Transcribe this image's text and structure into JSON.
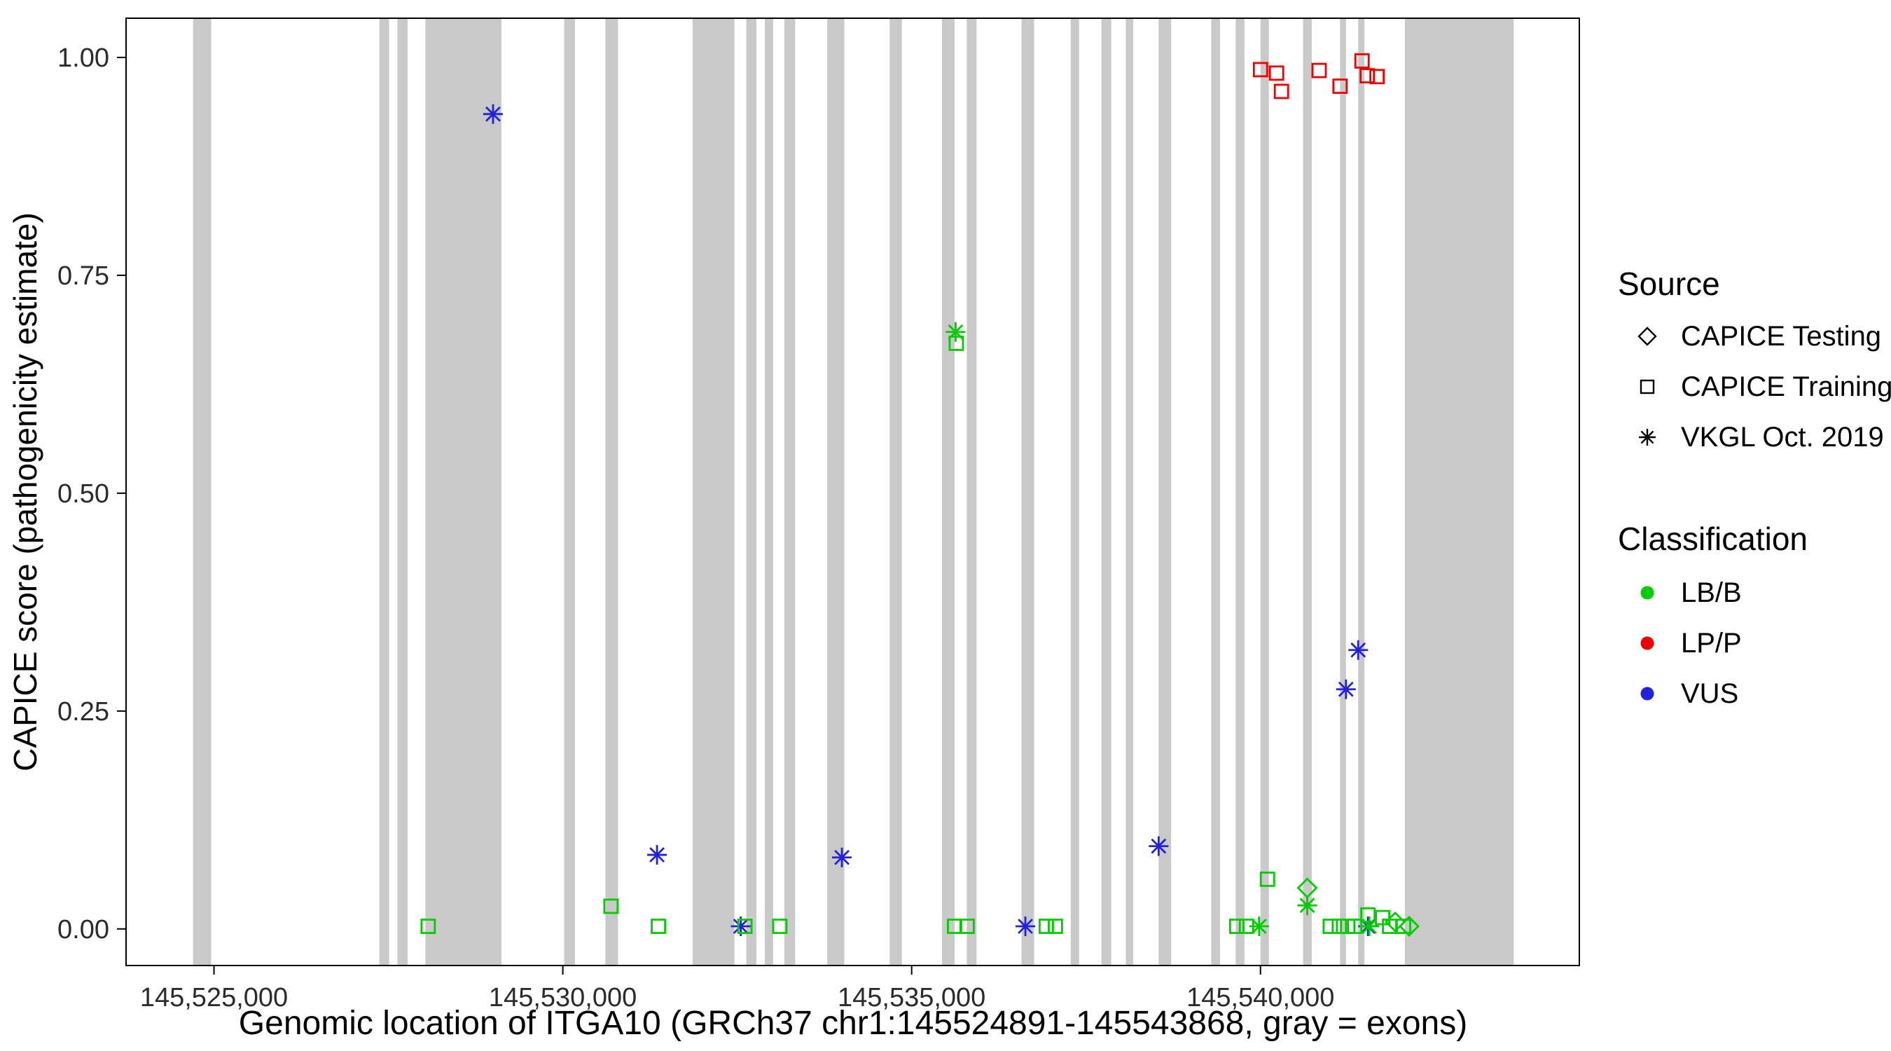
{
  "chart_data": {
    "type": "scatter",
    "title": "",
    "xlabel": "Genomic location of ITGA10 (GRCh37 chr1:145524891-145543868, gray = exons)",
    "ylabel": "CAPICE score (pathogenicity estimate)",
    "xlim": [
      145523740,
      145544570
    ],
    "ylim": [
      -0.042,
      1.045
    ],
    "x_ticks": [
      {
        "value": 145525000,
        "label": "145,525,000"
      },
      {
        "value": 145530000,
        "label": "145,530,000"
      },
      {
        "value": 145535000,
        "label": "145,535,000"
      },
      {
        "value": 145540000,
        "label": "145,540,000"
      }
    ],
    "y_ticks": [
      {
        "value": 0.0,
        "label": "0.00"
      },
      {
        "value": 0.25,
        "label": "0.25"
      },
      {
        "value": 0.5,
        "label": "0.50"
      },
      {
        "value": 0.75,
        "label": "0.75"
      },
      {
        "value": 1.0,
        "label": "1.00"
      }
    ],
    "grid": false,
    "exon_fill": "#c9c9c9",
    "colors": {
      "LB/B": "#00cc00",
      "LP/P": "#ee0000",
      "VUS": "#2222dd"
    },
    "shapes": {
      "testing": "diamond",
      "training": "square",
      "vkgl": "asterisk"
    },
    "exons": [
      [
        145524700,
        145524960
      ],
      [
        145527370,
        145527510
      ],
      [
        145527630,
        145527775
      ],
      [
        145528030,
        145529120
      ],
      [
        145530020,
        145530175
      ],
      [
        145530610,
        145530790
      ],
      [
        145531860,
        145532460
      ],
      [
        145532630,
        145532775
      ],
      [
        145532895,
        145533015
      ],
      [
        145533175,
        145533330
      ],
      [
        145533790,
        145534035
      ],
      [
        145534685,
        145534860
      ],
      [
        145535435,
        145535615
      ],
      [
        145535790,
        145535930
      ],
      [
        145536575,
        145536755
      ],
      [
        145537280,
        145537400
      ],
      [
        145537720,
        145537860
      ],
      [
        145538070,
        145538175
      ],
      [
        145538540,
        145538720
      ],
      [
        145539295,
        145539420
      ],
      [
        145539645,
        145539770
      ],
      [
        145540000,
        145540120
      ],
      [
        145540610,
        145540735
      ],
      [
        145541140,
        145541225
      ],
      [
        145541400,
        145541490
      ],
      [
        145542070,
        145543630
      ]
    ],
    "points": [
      {
        "x": 145529000,
        "y": 0.935,
        "source": "vkgl",
        "cls": "VUS"
      },
      {
        "x": 145531350,
        "y": 0.085,
        "source": "vkgl",
        "cls": "VUS"
      },
      {
        "x": 145532550,
        "y": 0.003,
        "source": "vkgl",
        "cls": "VUS"
      },
      {
        "x": 145534000,
        "y": 0.082,
        "source": "vkgl",
        "cls": "VUS"
      },
      {
        "x": 145536630,
        "y": 0.003,
        "source": "vkgl",
        "cls": "VUS"
      },
      {
        "x": 145538540,
        "y": 0.095,
        "source": "vkgl",
        "cls": "VUS"
      },
      {
        "x": 145541225,
        "y": 0.275,
        "source": "vkgl",
        "cls": "VUS"
      },
      {
        "x": 145541400,
        "y": 0.32,
        "source": "vkgl",
        "cls": "VUS"
      },
      {
        "x": 145541540,
        "y": 0.003,
        "source": "vkgl",
        "cls": "VUS"
      },
      {
        "x": 145540000,
        "y": 0.986,
        "source": "training",
        "cls": "LP/P"
      },
      {
        "x": 145540230,
        "y": 0.982,
        "source": "training",
        "cls": "LP/P"
      },
      {
        "x": 145540300,
        "y": 0.961,
        "source": "training",
        "cls": "LP/P"
      },
      {
        "x": 145540840,
        "y": 0.985,
        "source": "training",
        "cls": "LP/P"
      },
      {
        "x": 145541140,
        "y": 0.967,
        "source": "training",
        "cls": "LP/P"
      },
      {
        "x": 145541455,
        "y": 0.996,
        "source": "training",
        "cls": "LP/P"
      },
      {
        "x": 145541530,
        "y": 0.979,
        "source": "training",
        "cls": "LP/P"
      },
      {
        "x": 145541670,
        "y": 0.978,
        "source": "training",
        "cls": "LP/P"
      },
      {
        "x": 145535630,
        "y": 0.685,
        "source": "vkgl",
        "cls": "LB/B"
      },
      {
        "x": 145535640,
        "y": 0.672,
        "source": "training",
        "cls": "LB/B"
      },
      {
        "x": 145539980,
        "y": 0.003,
        "source": "vkgl",
        "cls": "LB/B"
      },
      {
        "x": 145540670,
        "y": 0.027,
        "source": "vkgl",
        "cls": "LB/B"
      },
      {
        "x": 145541560,
        "y": 0.003,
        "source": "vkgl",
        "cls": "LB/B"
      },
      {
        "x": 145528070,
        "y": 0.003,
        "source": "training",
        "cls": "LB/B"
      },
      {
        "x": 145530690,
        "y": 0.026,
        "source": "training",
        "cls": "LB/B"
      },
      {
        "x": 145531370,
        "y": 0.003,
        "source": "training",
        "cls": "LB/B"
      },
      {
        "x": 145532610,
        "y": 0.003,
        "source": "training",
        "cls": "LB/B"
      },
      {
        "x": 145533110,
        "y": 0.003,
        "source": "training",
        "cls": "LB/B"
      },
      {
        "x": 145535615,
        "y": 0.003,
        "source": "training",
        "cls": "LB/B"
      },
      {
        "x": 145535795,
        "y": 0.003,
        "source": "training",
        "cls": "LB/B"
      },
      {
        "x": 145536930,
        "y": 0.003,
        "source": "training",
        "cls": "LB/B"
      },
      {
        "x": 145537060,
        "y": 0.003,
        "source": "training",
        "cls": "LB/B"
      },
      {
        "x": 145539660,
        "y": 0.003,
        "source": "training",
        "cls": "LB/B"
      },
      {
        "x": 145539800,
        "y": 0.003,
        "source": "training",
        "cls": "LB/B"
      },
      {
        "x": 145540100,
        "y": 0.057,
        "source": "training",
        "cls": "LB/B"
      },
      {
        "x": 145541000,
        "y": 0.003,
        "source": "training",
        "cls": "LB/B"
      },
      {
        "x": 145541130,
        "y": 0.003,
        "source": "training",
        "cls": "LB/B"
      },
      {
        "x": 145541250,
        "y": 0.003,
        "source": "training",
        "cls": "LB/B"
      },
      {
        "x": 145541350,
        "y": 0.003,
        "source": "training",
        "cls": "LB/B"
      },
      {
        "x": 145541540,
        "y": 0.016,
        "source": "training",
        "cls": "LB/B"
      },
      {
        "x": 145541750,
        "y": 0.013,
        "source": "training",
        "cls": "LB/B"
      },
      {
        "x": 145541850,
        "y": 0.003,
        "source": "training",
        "cls": "LB/B"
      },
      {
        "x": 145542050,
        "y": 0.003,
        "source": "training",
        "cls": "LB/B"
      },
      {
        "x": 145540670,
        "y": 0.047,
        "source": "testing",
        "cls": "LB/B"
      },
      {
        "x": 145541930,
        "y": 0.008,
        "source": "testing",
        "cls": "LB/B"
      },
      {
        "x": 145542130,
        "y": 0.003,
        "source": "testing",
        "cls": "LB/B"
      }
    ]
  },
  "legend": {
    "source_title": "Source",
    "source_items": [
      {
        "label": "CAPICE Testing",
        "shape": "diamond"
      },
      {
        "label": "CAPICE Training",
        "shape": "square"
      },
      {
        "label": "VKGL Oct. 2019",
        "shape": "asterisk"
      }
    ],
    "class_title": "Classification",
    "class_items": [
      {
        "label": "LB/B",
        "cls": "LB/B"
      },
      {
        "label": "LP/P",
        "cls": "LP/P"
      },
      {
        "label": "VUS",
        "cls": "VUS"
      }
    ]
  }
}
